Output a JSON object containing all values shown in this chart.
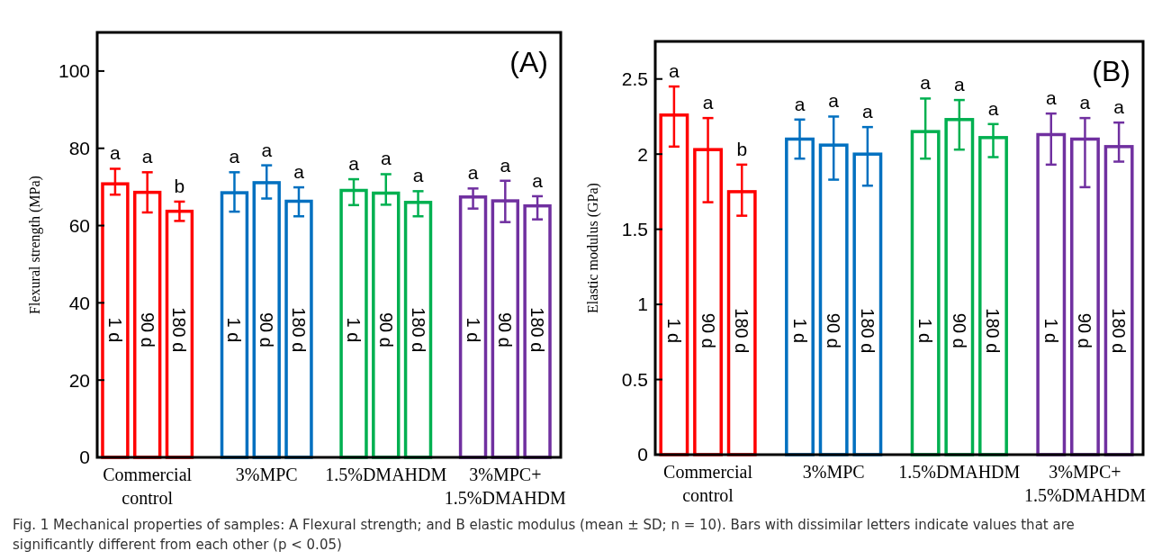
{
  "chart_data": [
    {
      "type": "bar",
      "title": "(A)",
      "ylabel": "Flexural strength  (MPa)",
      "categories": [
        "Commercial control",
        "3%MPC",
        "1.5%DMAHDM",
        "3%MPC+ 1.5%DMAHDM"
      ],
      "series": [
        {
          "name": "1 d",
          "colors": [
            "#ff0000",
            "#0070c0",
            "#00b050",
            "#7030a0"
          ],
          "values": [
            70.8,
            68.5,
            69.1,
            67.4
          ],
          "errors": [
            [
              68.0,
              74.7
            ],
            [
              63.6,
              73.8
            ],
            [
              65.3,
              72.0
            ],
            [
              64.4,
              69.6
            ]
          ]
        },
        {
          "name": "90 d",
          "colors": [
            "#ff0000",
            "#0070c0",
            "#00b050",
            "#7030a0"
          ],
          "values": [
            68.6,
            71.1,
            68.4,
            66.4
          ],
          "errors": [
            [
              63.4,
              73.8
            ],
            [
              67.0,
              75.6
            ],
            [
              65.4,
              73.3
            ],
            [
              60.9,
              71.6
            ]
          ]
        },
        {
          "name": "180 d",
          "colors": [
            "#ff0000",
            "#0070c0",
            "#00b050",
            "#7030a0"
          ],
          "values": [
            63.7,
            66.3,
            66.0,
            65.1
          ],
          "errors": [
            [
              61.2,
              66.2
            ],
            [
              62.4,
              69.9
            ],
            [
              62.4,
              68.9
            ],
            [
              61.6,
              67.6
            ]
          ]
        }
      ],
      "ylim": [
        0,
        110
      ],
      "yticks": [
        0,
        20,
        40,
        60,
        80,
        100
      ],
      "annotations": [
        "a",
        "a",
        "b",
        "a",
        "a",
        "a",
        "a",
        "a",
        "a",
        "a",
        "a",
        "a"
      ]
    },
    {
      "type": "bar",
      "title": "(B)",
      "ylabel": "Elastic modulus (GPa)",
      "categories": [
        "Commercial control",
        "3%MPC",
        "1.5%DMAHDM",
        "3%MPC+ 1.5%DMAHDM"
      ],
      "series": [
        {
          "name": "1 d",
          "colors": [
            "#ff0000",
            "#0070c0",
            "#00b050",
            "#7030a0"
          ],
          "values": [
            2.26,
            2.1,
            2.15,
            2.13
          ],
          "errors": [
            [
              2.05,
              2.45
            ],
            [
              1.97,
              2.23
            ],
            [
              1.97,
              2.37
            ],
            [
              1.93,
              2.27
            ]
          ]
        },
        {
          "name": "90 d",
          "colors": [
            "#ff0000",
            "#0070c0",
            "#00b050",
            "#7030a0"
          ],
          "values": [
            2.03,
            2.06,
            2.23,
            2.1
          ],
          "errors": [
            [
              1.68,
              2.24
            ],
            [
              1.83,
              2.25
            ],
            [
              2.03,
              2.36
            ],
            [
              1.78,
              2.24
            ]
          ]
        },
        {
          "name": "180 d",
          "colors": [
            "#ff0000",
            "#0070c0",
            "#00b050",
            "#7030a0"
          ],
          "values": [
            1.75,
            2.0,
            2.11,
            2.05
          ],
          "errors": [
            [
              1.59,
              1.93
            ],
            [
              1.79,
              2.18
            ],
            [
              1.98,
              2.2
            ],
            [
              1.95,
              2.21
            ]
          ]
        }
      ],
      "ylim": [
        0,
        2.75
      ],
      "yticks": [
        0,
        0.5,
        1,
        1.5,
        2,
        2.5
      ],
      "annotations": [
        "a",
        "a",
        "b",
        "a",
        "a",
        "a",
        "a",
        "a",
        "a",
        "a",
        "a",
        "a",
        "Fig. 1  Mechanical properties of samples: A Flexural strength; and B elastic modulus (mean ± SD; n = 10). Bars with dissimilar letters indicate values that are significantly different from each other (p < 0.05)"
      ]
    }
  ]
}
